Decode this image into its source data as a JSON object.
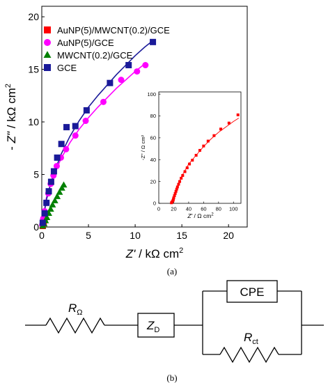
{
  "main": {
    "type": "scatter",
    "xlabel_italic": "Z'",
    "xlabel_rest": " / kΩ cm",
    "xlabel_sup": "2",
    "ylabel_italic": "Z\"",
    "ylabel_prefix": "- ",
    "ylabel_rest": " / kΩ cm",
    "ylabel_sup": "2",
    "xlim": [
      0,
      22
    ],
    "ylim": [
      0,
      21
    ],
    "xticks": [
      0,
      5,
      10,
      15,
      20
    ],
    "yticks": [
      0,
      5,
      10,
      15,
      20
    ],
    "legend_position": "top-left",
    "series": [
      {
        "name": "AuNP(5)/MWCNT(0.2)/GCE",
        "marker": "square",
        "color": "#ff0000",
        "x": [
          0.1,
          0.2,
          0.3
        ],
        "y": [
          0.1,
          0.4,
          0.8
        ]
      },
      {
        "name": "AuNP(5)/GCE",
        "marker": "circle",
        "color": "#ff00ff",
        "x": [
          0.05,
          0.15,
          0.3,
          0.5,
          0.7,
          0.95,
          1.25,
          1.6,
          2.05,
          2.6,
          3.6,
          4.7,
          6.6,
          8.5,
          10.2,
          11.1
        ],
        "y": [
          0.2,
          0.8,
          1.5,
          2.3,
          3.2,
          4.1,
          4.9,
          5.8,
          6.6,
          7.4,
          8.7,
          10.1,
          11.9,
          14.0,
          14.8,
          15.4
        ],
        "fit_x": [
          0,
          0.5,
          1,
          2,
          3,
          4,
          5,
          6,
          7,
          8,
          9,
          10,
          11
        ],
        "fit_y": [
          0,
          2.8,
          4.2,
          6.4,
          8.0,
          9.3,
          10.4,
          11.4,
          12.3,
          13.2,
          14.0,
          14.8,
          15.5
        ]
      },
      {
        "name": "MWCNT(0.2)/GCE",
        "marker": "triangle",
        "color": "#008000",
        "x": [
          0.1,
          0.25,
          0.4,
          0.55,
          0.75,
          0.95,
          1.15,
          1.4,
          1.65,
          1.9,
          2.15,
          2.35
        ],
        "y": [
          0.1,
          0.3,
          0.6,
          0.9,
          1.3,
          1.7,
          2.1,
          2.5,
          2.9,
          3.3,
          3.7,
          4.0
        ]
      },
      {
        "name": "GCE",
        "marker": "square",
        "color": "#1a1a99",
        "x": [
          0.1,
          0.3,
          0.5,
          0.75,
          1.0,
          1.3,
          1.65,
          2.1,
          2.65,
          3.6,
          4.8,
          7.3,
          9.3,
          11.9
        ],
        "y": [
          0.4,
          1.3,
          2.3,
          3.4,
          4.3,
          5.3,
          6.6,
          7.9,
          9.5,
          9.6,
          11.1,
          13.7,
          15.4,
          17.6
        ],
        "fit_x": [
          0,
          0.5,
          1,
          2,
          3,
          4,
          5,
          6,
          7,
          8,
          9,
          10,
          11,
          12
        ],
        "fit_y": [
          0,
          2.6,
          4.3,
          6.8,
          8.6,
          10.1,
          11.4,
          12.5,
          13.5,
          14.5,
          15.4,
          16.3,
          17.1,
          17.8
        ]
      }
    ]
  },
  "inset": {
    "type": "scatter",
    "xlabel_italic": "Z'",
    "xlabel_rest": " / Ω cm",
    "xlabel_sup": "2",
    "ylabel": "-Z\" / Ω cm²",
    "xlim": [
      0,
      110
    ],
    "ylim": [
      0,
      102
    ],
    "xticks": [
      0,
      20,
      40,
      60,
      80,
      100
    ],
    "yticks": [
      0,
      20,
      40,
      60,
      80,
      100
    ],
    "series": [
      {
        "name": "AuNP(5)/MWCNT(0.2)/GCE",
        "marker": "square",
        "color": "#ff0000",
        "x": [
          17,
          18,
          19,
          19.5,
          20,
          21,
          22,
          23,
          24,
          25,
          26.5,
          28,
          30,
          32,
          35,
          38,
          41,
          45,
          50,
          55,
          60,
          66,
          74,
          83,
          94,
          106
        ],
        "y": [
          0.5,
          1.5,
          2.5,
          3.5,
          5,
          7,
          9,
          11,
          13,
          15,
          17.5,
          20,
          23,
          25.5,
          29,
          32.5,
          36,
          39.5,
          44,
          48.5,
          52.5,
          57,
          62,
          68,
          73.5,
          81
        ],
        "fit_x": [
          16,
          18,
          20,
          22,
          25,
          30,
          35,
          40,
          50,
          60,
          70,
          80,
          90,
          100,
          107
        ],
        "fit_y": [
          0,
          1.5,
          5,
          9,
          15,
          24,
          30,
          36,
          44,
          52,
          59,
          65,
          70,
          75,
          78
        ]
      }
    ]
  },
  "labels": {
    "a": "(a)",
    "b": "(b)"
  },
  "circuit": {
    "r_omega_main": "R",
    "r_omega_sub": "Ω",
    "zd_main": "Z",
    "zd_sub": "D",
    "cpe": "CPE",
    "rct_main": "R",
    "rct_sub": "ct"
  }
}
